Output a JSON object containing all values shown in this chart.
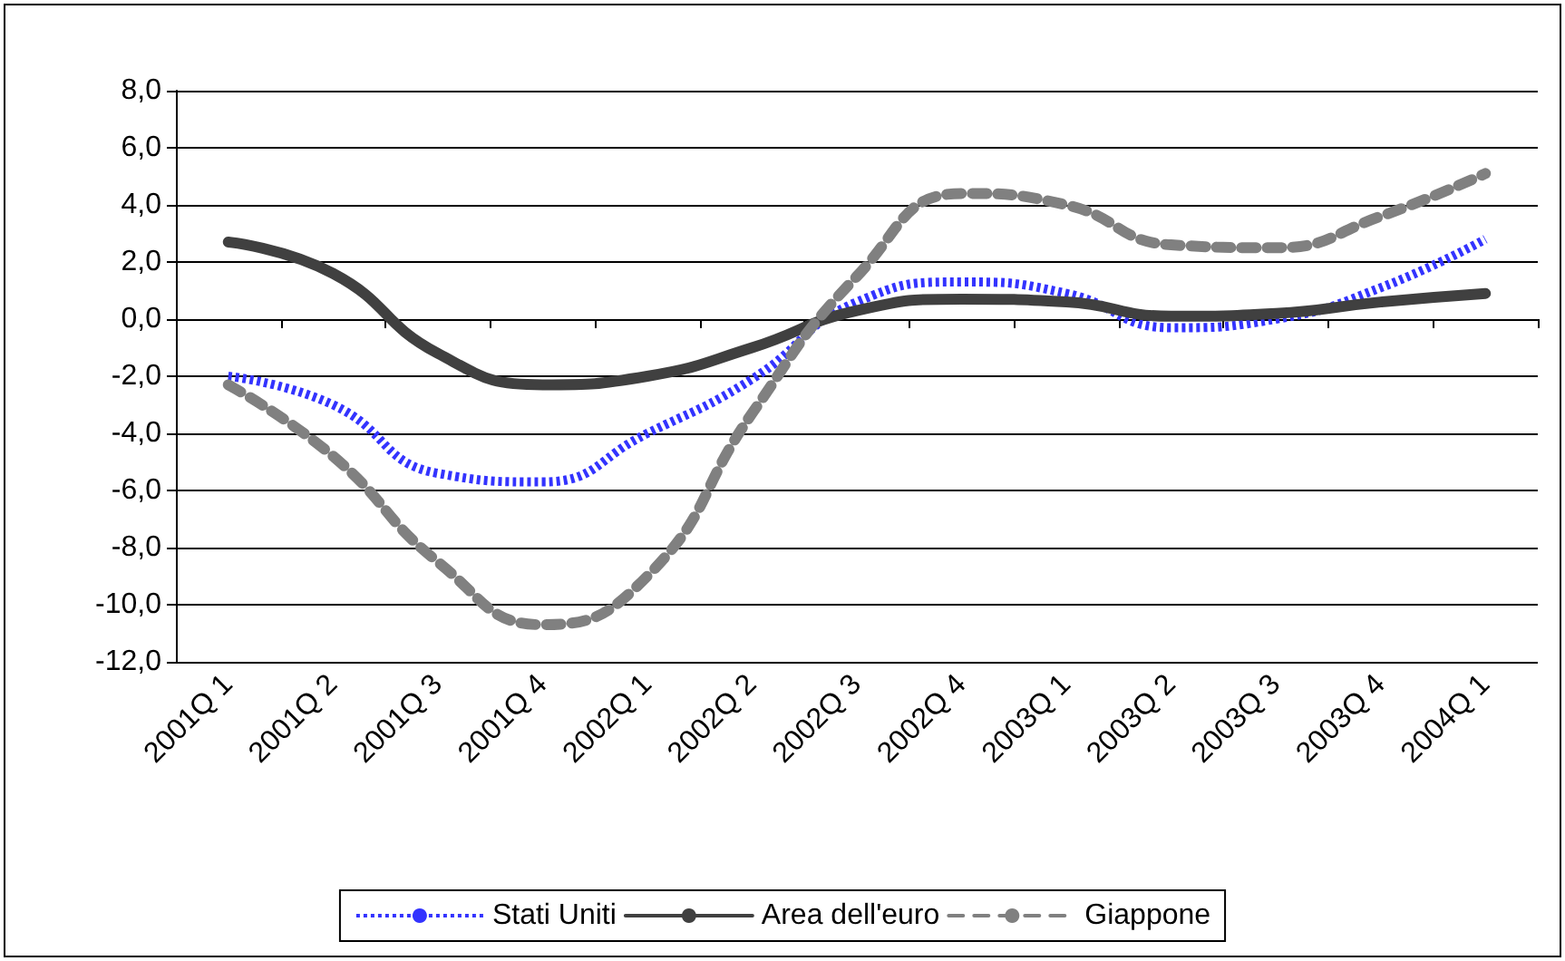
{
  "chart_data": {
    "type": "line",
    "categories": [
      "2001Q 1",
      "2001Q 2",
      "2001Q 3",
      "2001Q 4",
      "2002Q 1",
      "2002Q 2",
      "2002Q 3",
      "2002Q 4",
      "2003Q 1",
      "2003Q 2",
      "2003Q 3",
      "2003Q 4",
      "2004Q 1"
    ],
    "series": [
      {
        "name": "Stati Uniti",
        "color": "#3333ff",
        "line_style": "dotted",
        "values": [
          -2.0,
          -3.0,
          -5.4,
          -5.7,
          -4.0,
          -2.1,
          0.6,
          1.3,
          0.9,
          -0.3,
          0.0,
          1.1,
          2.8
        ]
      },
      {
        "name": "Area dell'euro",
        "color": "#404040",
        "line_style": "solid",
        "values": [
          2.7,
          1.6,
          -1.2,
          -2.3,
          -2.0,
          -1.0,
          0.3,
          0.7,
          0.6,
          0.1,
          0.2,
          0.6,
          0.9
        ]
      },
      {
        "name": "Giappone",
        "color": "#808080",
        "line_style": "dashed",
        "values": [
          -2.3,
          -4.8,
          -8.5,
          -10.7,
          -9.0,
          -3.3,
          1.5,
          4.4,
          4.0,
          2.6,
          2.5,
          3.6,
          5.1
        ]
      }
    ],
    "ylim": [
      -12,
      8
    ],
    "yticks": [
      {
        "value": -12,
        "label": "-12,0"
      },
      {
        "value": -10,
        "label": "-10,0"
      },
      {
        "value": -8,
        "label": "-8,0"
      },
      {
        "value": -6,
        "label": "-6,0"
      },
      {
        "value": -4,
        "label": "-4,0"
      },
      {
        "value": -2,
        "label": "-2,0"
      },
      {
        "value": 0,
        "label": "0,0"
      },
      {
        "value": 2,
        "label": "2,0"
      },
      {
        "value": 4,
        "label": "4,0"
      },
      {
        "value": 6,
        "label": "6,0"
      },
      {
        "value": 8,
        "label": "8,0"
      }
    ],
    "grid": "y",
    "legend": "bottom",
    "marker": "none"
  }
}
